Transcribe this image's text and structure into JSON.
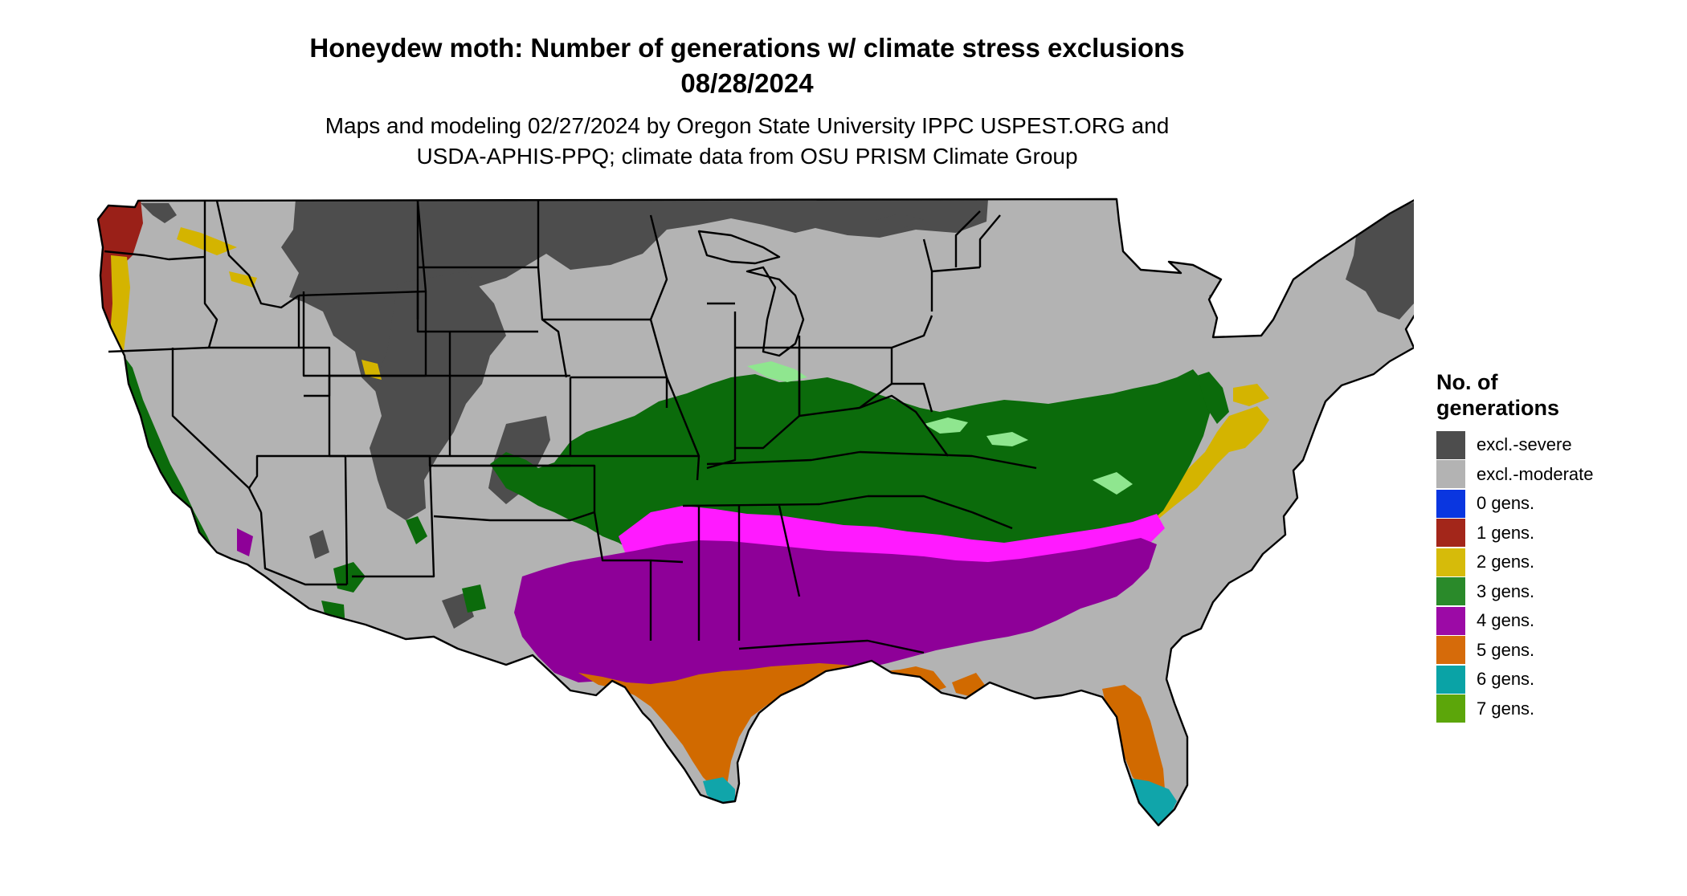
{
  "title": {
    "line1": "Honeydew moth: Number of generations w/ climate stress exclusions",
    "line2": "08/28/2024"
  },
  "subtitle": {
    "line1": "Maps and modeling 02/27/2024 by Oregon State University IPPC USPEST.ORG and",
    "line2": "USDA-APHIS-PPQ; climate data from OSU PRISM Climate Group"
  },
  "legend": {
    "title_line1": "No. of",
    "title_line2": "generations",
    "items": [
      {
        "label": "excl.-severe",
        "color": "#4d4d4d"
      },
      {
        "label": "excl.-moderate",
        "color": "#b3b3b3"
      },
      {
        "label": "0 gens.",
        "color": "#0a36e0"
      },
      {
        "label": "1 gens.",
        "color": "#a3261a"
      },
      {
        "label": "2 gens.",
        "color": "#d6bb0a"
      },
      {
        "label": "3 gens.",
        "color": "#2a8a2a"
      },
      {
        "label": "4 gens.",
        "color": "#9c0aa6"
      },
      {
        "label": "5 gens.",
        "color": "#d66b0a"
      },
      {
        "label": "6 gens.",
        "color": "#0aa3a6"
      },
      {
        "label": "7 gens.",
        "color": "#5ca60a"
      }
    ]
  },
  "map_colors": {
    "severe": "#4d4d4d",
    "moderate": "#b3b3b3",
    "g1": "#9a2018",
    "g2": "#d4b400",
    "g3": "#0b6b0b",
    "g3light": "#8fe68f",
    "g4": "#8e0098",
    "g4bright": "#ff1aff",
    "g5": "#d16a00",
    "g6": "#10a5aa",
    "g7": "#5ca60a",
    "border": "#000000"
  }
}
